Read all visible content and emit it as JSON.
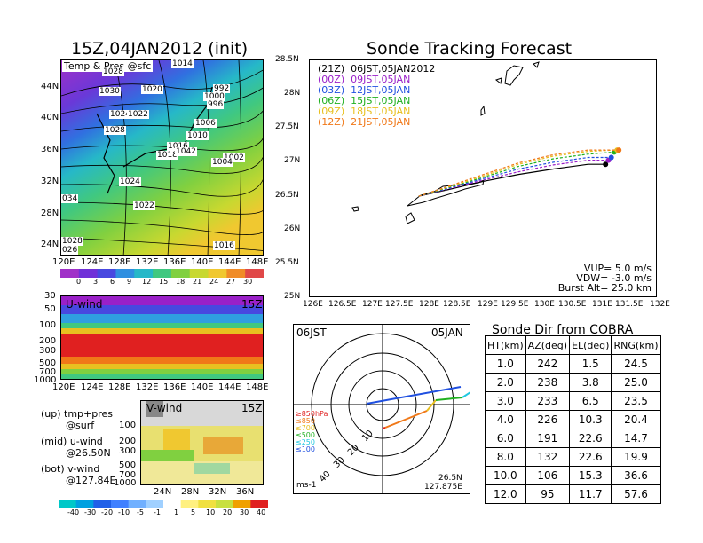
{
  "map_panel": {
    "title": "15Z,04JAN2012 (init)",
    "field_label": "Temp & Pres @sfc",
    "lat_ticks": [
      "44N",
      "40N",
      "36N",
      "32N",
      "28N",
      "24N"
    ],
    "lon_ticks": [
      "120E",
      "124E",
      "128E",
      "132E",
      "136E",
      "140E",
      "144E",
      "148E"
    ],
    "isobar_labels": [
      "1014",
      "1028",
      "1020",
      "1030",
      "992",
      "1000",
      "996",
      "1024",
      "1022",
      "1006",
      "1028",
      "1010",
      "1016",
      "1018",
      "1002",
      "1004",
      "1024",
      "1022",
      "034",
      "1028",
      "026",
      "1016",
      "1042"
    ],
    "colorbar_ticks": [
      "0",
      "3",
      "6",
      "9",
      "12",
      "15",
      "18",
      "21",
      "24",
      "27",
      "30"
    ],
    "colorbar_colors": [
      "#a030c8",
      "#7030d8",
      "#4848e0",
      "#2f8fe0",
      "#26b8c8",
      "#40c880",
      "#80d040",
      "#c8d830",
      "#f0c830",
      "#f08c28",
      "#e04848"
    ]
  },
  "uwind_panel": {
    "label": "U-wind",
    "time": "15Z",
    "y_ticks": [
      "30",
      "50",
      "100",
      "200",
      "300",
      "500",
      "700",
      "1000"
    ],
    "x_ticks": [
      "120E",
      "124E",
      "128E",
      "132E",
      "136E",
      "140E",
      "144E",
      "148E"
    ]
  },
  "vwind_panel": {
    "label": "V-wind",
    "time": "15Z",
    "y_ticks": [
      "100",
      "200",
      "300",
      "500",
      "700",
      "1000"
    ],
    "x_ticks": [
      "24N",
      "28N",
      "32N",
      "36N"
    ],
    "colorbar_ticks": [
      "-40",
      "-30",
      "-20",
      "-10",
      "-5",
      "-1",
      "1",
      "5",
      "10",
      "20",
      "30",
      "40"
    ],
    "colorbar_colors": [
      "#00c8c8",
      "#00a0e0",
      "#2060e8",
      "#4080ff",
      "#70b0ff",
      "#a0d0ff",
      "#ffffff",
      "#fff080",
      "#f0e040",
      "#c8e040",
      "#f0a000",
      "#e02020"
    ]
  },
  "legend_notes": [
    {
      "a": "(up) tmp+pres",
      "b": "@surf"
    },
    {
      "a": "(mid) u-wind",
      "b": "@26.50N"
    },
    {
      "a": "(bot) v-wind",
      "b": "@127.84E"
    }
  ],
  "track_panel": {
    "title": "Sonde Tracking Forecast",
    "vup": "VUP= 5.0 m/s",
    "vdw": "VDW= -3.0 m/s",
    "burst": "Burst Alt= 25.0 km",
    "launches": [
      {
        "text": "(21Z)  06JST,05JAN2012",
        "color": "#000000"
      },
      {
        "text": "(00Z)  09JST,05JAN",
        "color": "#9a20c8"
      },
      {
        "text": "(03Z)  12JST,05JAN",
        "color": "#2050e0"
      },
      {
        "text": "(06Z)  15JST,05JAN",
        "color": "#20b020"
      },
      {
        "text": "(09Z)  18JST,05JAN",
        "color": "#e8c020"
      },
      {
        "text": "(12Z)  21JST,05JAN",
        "color": "#f07818"
      }
    ]
  },
  "polar_panel": {
    "left_title": "06JST",
    "right_title": "05JAN",
    "units": "ms-1",
    "coord1": "26.5N",
    "coord2": "127.875E",
    "ring_labels": [
      "10",
      "20",
      "30",
      "40"
    ],
    "pressure_legend": [
      {
        "text": "≥850hPa",
        "color": "#e02020"
      },
      {
        "text": "≤850",
        "color": "#f07818"
      },
      {
        "text": "≤700",
        "color": "#e8c020"
      },
      {
        "text": "≤500",
        "color": "#20b020"
      },
      {
        "text": "≤250",
        "color": "#20c8e0"
      },
      {
        "text": "≤100",
        "color": "#2050e0"
      }
    ]
  },
  "table_panel": {
    "title": "Sonde Dir from COBRA",
    "headers": [
      "HT(km)",
      "AZ(deg)",
      "EL(deg)",
      "RNG(km)"
    ],
    "rows": [
      [
        "1.0",
        "242",
        "1.5",
        "24.5"
      ],
      [
        "2.0",
        "238",
        "3.8",
        "25.0"
      ],
      [
        "3.0",
        "233",
        "6.5",
        "23.5"
      ],
      [
        "4.0",
        "226",
        "10.3",
        "20.4"
      ],
      [
        "6.0",
        "191",
        "22.6",
        "14.7"
      ],
      [
        "8.0",
        "132",
        "22.6",
        "19.9"
      ],
      [
        "10.0",
        "106",
        "15.3",
        "36.6"
      ],
      [
        "12.0",
        "95",
        "11.7",
        "57.6"
      ]
    ]
  },
  "chart_data": {
    "type": "line",
    "title": "Sonde Tracking Forecast",
    "xlim": [
      126,
      132
    ],
    "ylim": [
      25,
      28.5
    ],
    "x_ticks": [
      "126E",
      "126.5E",
      "127E",
      "127.5E",
      "128E",
      "128.5E",
      "129E",
      "129.5E",
      "130E",
      "130.5E",
      "131E",
      "131.5E",
      "132E"
    ],
    "y_ticks": [
      "28.5N",
      "28N",
      "27.5N",
      "27N",
      "26.5N",
      "26N",
      "25.5N",
      "25N"
    ],
    "series": [
      {
        "name": "(21Z)",
        "color": "#000000",
        "x": [
          127.88,
          128.4,
          129.0,
          129.6,
          130.2,
          130.8,
          131.1
        ],
        "y": [
          26.5,
          26.6,
          26.72,
          26.82,
          26.9,
          26.97,
          26.97
        ]
      },
      {
        "name": "(00Z)",
        "color": "#9a20c8",
        "x": [
          127.88,
          128.4,
          129.0,
          129.6,
          130.2,
          130.8,
          131.15
        ],
        "y": [
          26.5,
          26.61,
          26.74,
          26.86,
          26.96,
          27.03,
          27.03
        ]
      },
      {
        "name": "(03Z)",
        "color": "#2050e0",
        "x": [
          127.88,
          128.4,
          129.0,
          129.6,
          130.2,
          130.8,
          131.2
        ],
        "y": [
          26.5,
          26.62,
          26.76,
          26.9,
          27.0,
          27.07,
          27.07
        ]
      },
      {
        "name": "(06Z)",
        "color": "#20b020",
        "x": [
          127.88,
          128.4,
          129.0,
          129.6,
          130.2,
          130.8,
          131.25
        ],
        "y": [
          26.5,
          26.63,
          26.78,
          26.94,
          27.05,
          27.12,
          27.15
        ]
      },
      {
        "name": "(09Z)",
        "color": "#e8c020",
        "x": [
          127.88,
          128.4,
          129.0,
          129.6,
          130.2,
          130.8,
          131.3
        ],
        "y": [
          26.5,
          26.64,
          26.8,
          26.97,
          27.09,
          27.16,
          27.18
        ]
      },
      {
        "name": "(12Z)",
        "color": "#f07818",
        "x": [
          127.88,
          128.4,
          129.0,
          129.6,
          130.2,
          130.8,
          131.33
        ],
        "y": [
          26.5,
          26.65,
          26.82,
          26.99,
          27.11,
          27.18,
          27.18
        ]
      }
    ]
  }
}
